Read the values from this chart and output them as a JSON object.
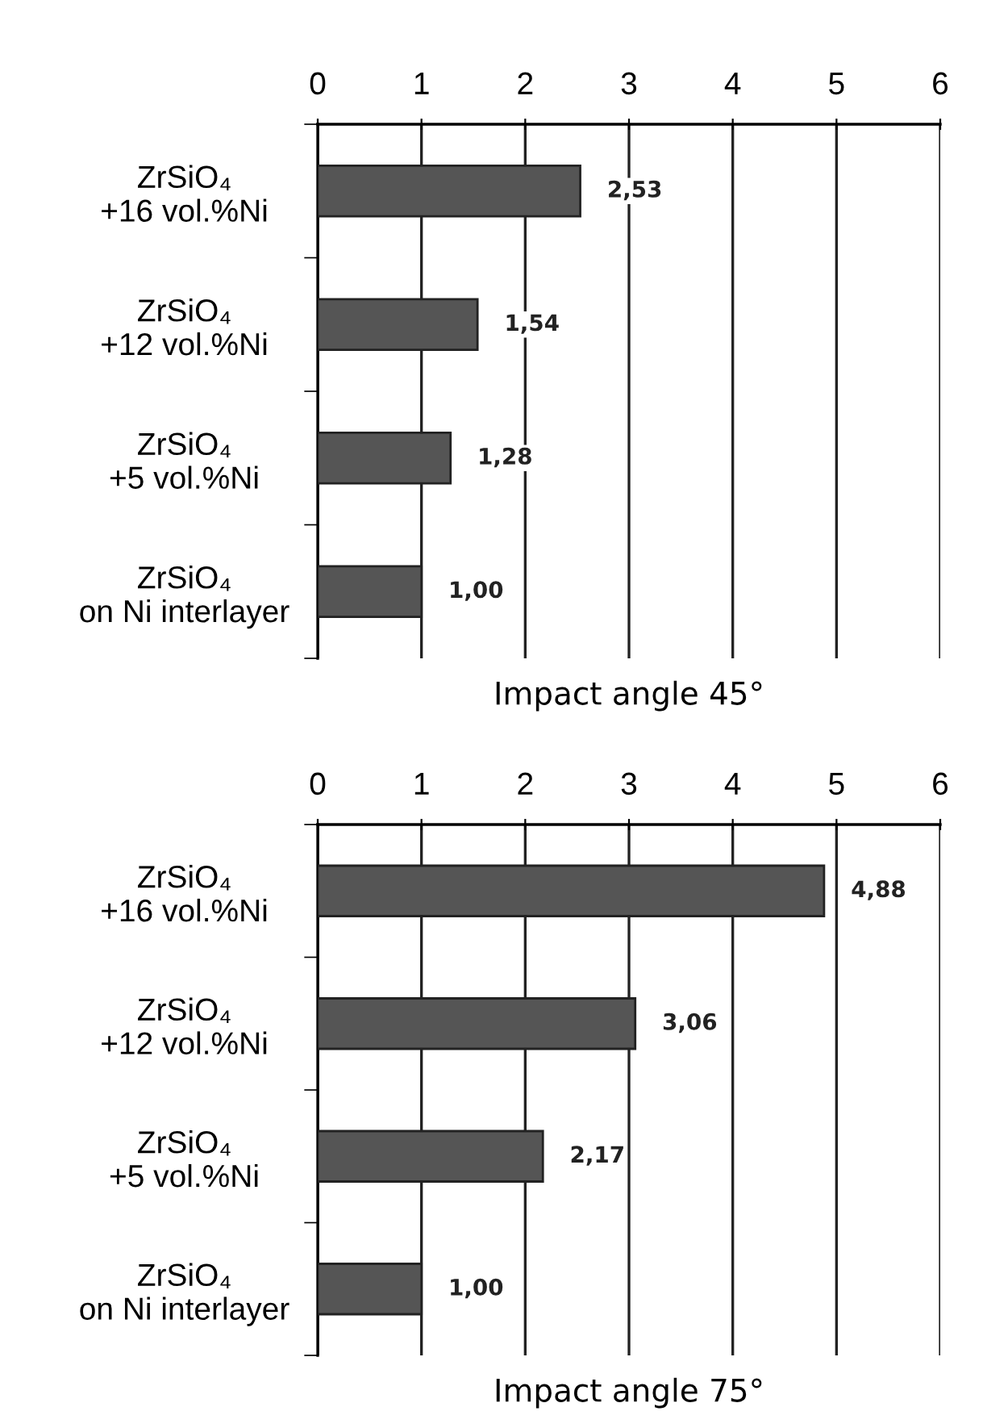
{
  "chart_data": [
    {
      "type": "bar",
      "orientation": "horizontal",
      "xlabel": "Impact angle 45°",
      "categories": [
        "ZrSiO₄\n+16 vol.%Ni",
        "ZrSiO₄\n+12 vol.%Ni",
        "ZrSiO₄\n+5 vol.%Ni",
        "ZrSiO₄\non Ni interlayer"
      ],
      "values": [
        2.53,
        1.54,
        1.28,
        1.0
      ],
      "value_labels": [
        "2,53",
        "1,54",
        "1,28",
        "1,00"
      ],
      "color": "#555555",
      "xlim": [
        0,
        6
      ],
      "xticks": [
        0,
        1,
        2,
        3,
        4,
        5,
        6
      ],
      "grid": "x"
    },
    {
      "type": "bar",
      "orientation": "horizontal",
      "xlabel": "Impact angle 75°",
      "categories": [
        "ZrSiO₄\n+16 vol.%Ni",
        "ZrSiO₄\n+12 vol.%Ni",
        "ZrSiO₄\n+5 vol.%Ni",
        "ZrSiO₄\non Ni interlayer"
      ],
      "values": [
        4.88,
        3.06,
        2.17,
        1.0
      ],
      "value_labels": [
        "4,88",
        "3,06",
        "2,17",
        "1,00"
      ],
      "color": "#555555",
      "xlim": [
        0,
        6
      ],
      "xticks": [
        0,
        1,
        2,
        3,
        4,
        5,
        6
      ],
      "grid": "x"
    }
  ]
}
